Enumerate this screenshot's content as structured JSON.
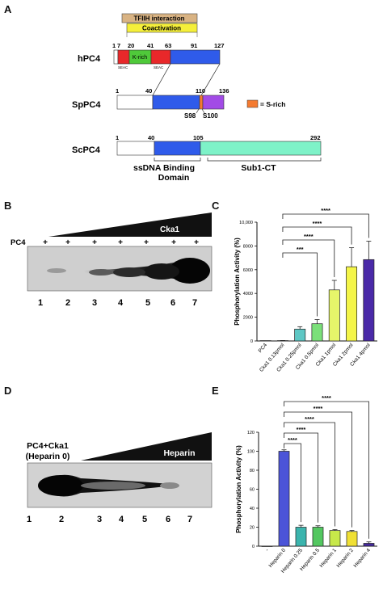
{
  "panels": {
    "a": "A",
    "b": "B",
    "c": "C",
    "d": "D",
    "e": "E"
  },
  "panel_a": {
    "tfiih": "TFIIH interaction",
    "coactivation": "Coactivation",
    "hpc4": {
      "name": "hPC4",
      "nums": [
        "1",
        "7",
        "20",
        "41",
        "63",
        "91",
        "127"
      ],
      "krich": "K-rich",
      "seac1": "SEAC",
      "seac2": "SEAC"
    },
    "sppc4": {
      "name": "SpPC4",
      "nums": [
        "1",
        "40",
        "110",
        "136"
      ],
      "s98": "S98",
      "s100": "S100"
    },
    "legend": "= S-rich",
    "scpc4": {
      "name": "ScPC4",
      "nums": [
        "1",
        "40",
        "105",
        "292"
      ]
    },
    "ssdna": "ssDNA Binding Domain",
    "sub1": "Sub1-CT",
    "colors": {
      "red": "#e8282a",
      "green": "#4fc93a",
      "blue": "#2f5bea",
      "purple": "#a24be6",
      "orange": "#f47a30",
      "teal": "#7ef2c8",
      "tan": "#d9b383",
      "yellow": "#f5ef3a"
    }
  },
  "panel_b": {
    "pc4_label": "PC4",
    "plus": [
      "+",
      "+",
      "+",
      "+",
      "+",
      "+",
      "+"
    ],
    "wedge_label": "Cka1",
    "lanes": [
      "1",
      "2",
      "3",
      "4",
      "5",
      "6",
      "7"
    ]
  },
  "panel_d": {
    "label_line1": "PC4+Cka1",
    "label_line2": "(Heparin 0)",
    "wedge_label": "Heparin",
    "lanes": [
      "1",
      "2",
      "3",
      "4",
      "5",
      "6",
      "7"
    ]
  },
  "chart_data": [
    {
      "type": "bar",
      "panel": "C",
      "ylabel": "Phosphorylation Activity (%)",
      "ylim": [
        0,
        10000
      ],
      "yticks": [
        "10,000",
        "8000",
        "6000",
        "4000",
        "2000",
        "0"
      ],
      "categories": [
        "PC4",
        "Cka1 0.13pmol",
        "Cka1 0.25pmol",
        "Cka1 0.5pmol",
        "Cka1 1pmol",
        "Cka1 2pmol",
        "Cka1 4pmol"
      ],
      "values": [
        30,
        30,
        1000,
        1450,
        4300,
        6250,
        6850
      ],
      "errors": [
        0,
        10,
        200,
        350,
        800,
        1600,
        1550
      ],
      "colors": [
        "#ffffff",
        "#ffffff",
        "#5ec7c4",
        "#7be07a",
        "#e6f56a",
        "#f4f548",
        "#4a2aa8"
      ],
      "significance": [
        {
          "label": "****",
          "to": 6
        },
        {
          "label": "****",
          "to": 5
        },
        {
          "label": "****",
          "to": 4
        },
        {
          "label": "***",
          "to": 3
        }
      ]
    },
    {
      "type": "bar",
      "panel": "E",
      "ylabel": "Phosphorylation Activity (%)",
      "ylim": [
        0,
        120
      ],
      "yticks": [
        "120",
        "100",
        "80",
        "60",
        "40",
        "20",
        "0"
      ],
      "categories": [
        "-",
        "Heparin 0",
        "Heparin 0.25",
        "Heparin 0.5",
        "Heparin 1",
        "Heparin 2",
        "Heparin 4"
      ],
      "values": [
        0,
        100,
        20,
        20,
        16.5,
        15.5,
        3
      ],
      "errors": [
        0,
        1.5,
        2,
        1.5,
        1,
        1,
        1.5
      ],
      "colors": [
        "#ffffff",
        "#4b54d8",
        "#3bb4ad",
        "#53c760",
        "#c7e84a",
        "#f0e034",
        "#452a9c"
      ],
      "significance": [
        {
          "label": "****",
          "to": 6
        },
        {
          "label": "****",
          "to": 5
        },
        {
          "label": "****",
          "to": 4
        },
        {
          "label": "****",
          "to": 3
        },
        {
          "label": "****",
          "to": 2
        }
      ]
    }
  ]
}
